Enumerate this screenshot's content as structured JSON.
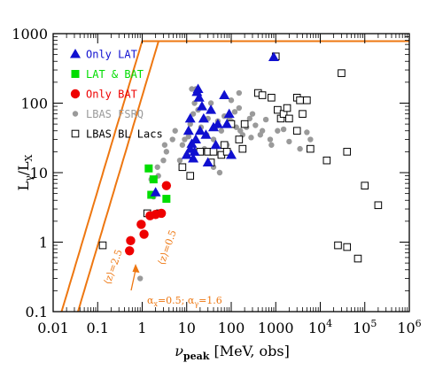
{
  "chart_data": {
    "type": "scatter",
    "title": "",
    "xlabel": "ν_peak [MeV, obs]",
    "ylabel": "L_γ/L_X",
    "x_scale": "log",
    "y_scale": "log",
    "xlim": [
      0.01,
      1000000
    ],
    "ylim": [
      0.1,
      1000
    ],
    "grid": false,
    "legend_position": "top-left",
    "x_ticks": [
      {
        "v": 0.01,
        "label": "0.01"
      },
      {
        "v": 0.1,
        "label": "0.1"
      },
      {
        "v": 1,
        "label": "1"
      },
      {
        "v": 10,
        "label": "10"
      },
      {
        "v": 100,
        "label": "100"
      },
      {
        "v": 1000,
        "label": "1000"
      },
      {
        "v": 10000,
        "base": "10",
        "exp": "4"
      },
      {
        "v": 100000,
        "base": "10",
        "exp": "5"
      },
      {
        "v": 1000000,
        "base": "10",
        "exp": "6"
      }
    ],
    "y_ticks": [
      {
        "v": 0.1,
        "label": "0.1"
      },
      {
        "v": 1,
        "label": "1"
      },
      {
        "v": 10,
        "label": "10"
      },
      {
        "v": 100,
        "label": "100"
      },
      {
        "v": 1000,
        "label": "1000"
      }
    ],
    "series": [
      {
        "name": "LBAS FSRQ",
        "marker": "circle-small",
        "color": "#9a9a9a",
        "points": [
          [
            0.9,
            0.3
          ],
          [
            1.8,
            4.5
          ],
          [
            1.6,
            8
          ],
          [
            2.3,
            9
          ],
          [
            2.2,
            12
          ],
          [
            3,
            15
          ],
          [
            3.5,
            20
          ],
          [
            4.8,
            30
          ],
          [
            5.5,
            40
          ],
          [
            3.2,
            25
          ],
          [
            7,
            15
          ],
          [
            8,
            25
          ],
          [
            9,
            30
          ],
          [
            10,
            18
          ],
          [
            11,
            33
          ],
          [
            12,
            50
          ],
          [
            14,
            70
          ],
          [
            13,
            160
          ],
          [
            15,
            100
          ],
          [
            16,
            160
          ],
          [
            18,
            80
          ],
          [
            21,
            45
          ],
          [
            25,
            22
          ],
          [
            28,
            35
          ],
          [
            30,
            60
          ],
          [
            35,
            100
          ],
          [
            40,
            30
          ],
          [
            45,
            45
          ],
          [
            50,
            55
          ],
          [
            60,
            40
          ],
          [
            70,
            65
          ],
          [
            80,
            25
          ],
          [
            90,
            60
          ],
          [
            100,
            55
          ],
          [
            120,
            75
          ],
          [
            130,
            45
          ],
          [
            150,
            85
          ],
          [
            160,
            40
          ],
          [
            180,
            35
          ],
          [
            200,
            50
          ],
          [
            220,
            45
          ],
          [
            260,
            60
          ],
          [
            280,
            32
          ],
          [
            300,
            70
          ],
          [
            350,
            48
          ],
          [
            450,
            35
          ],
          [
            500,
            40
          ],
          [
            600,
            58
          ],
          [
            750,
            30
          ],
          [
            800,
            25
          ],
          [
            1100,
            40
          ],
          [
            1500,
            42
          ],
          [
            2000,
            28
          ],
          [
            3500,
            22
          ],
          [
            5000,
            38
          ],
          [
            6000,
            30
          ],
          [
            40,
            12
          ],
          [
            55,
            10
          ],
          [
            100,
            110
          ],
          [
            150,
            140
          ]
        ]
      },
      {
        "name": "Only LAT",
        "marker": "triangle",
        "color": "#1010d0",
        "points": [
          [
            2,
            5.2
          ],
          [
            10,
            18
          ],
          [
            12,
            22
          ],
          [
            11,
            40
          ],
          [
            12,
            60
          ],
          [
            13,
            26
          ],
          [
            14,
            16
          ],
          [
            15,
            20
          ],
          [
            16,
            30
          ],
          [
            17,
            145
          ],
          [
            18,
            160
          ],
          [
            19,
            120
          ],
          [
            20,
            40
          ],
          [
            22,
            90
          ],
          [
            24,
            60
          ],
          [
            27,
            35
          ],
          [
            30,
            14
          ],
          [
            35,
            80
          ],
          [
            40,
            45
          ],
          [
            45,
            25
          ],
          [
            50,
            50
          ],
          [
            70,
            130
          ],
          [
            80,
            50
          ],
          [
            100,
            18
          ],
          [
            90,
            70
          ],
          [
            900,
            460
          ]
        ]
      },
      {
        "name": "LAT & BAT",
        "marker": "square-filled",
        "color": "#00dd00",
        "points": [
          [
            1.4,
            11.5
          ],
          [
            1.6,
            4.8
          ],
          [
            1.8,
            8
          ],
          [
            3.5,
            4.2
          ]
        ]
      },
      {
        "name": "Only BAT",
        "marker": "circle-large",
        "color": "#ee0000",
        "points": [
          [
            0.52,
            0.75
          ],
          [
            0.55,
            1.05
          ],
          [
            0.95,
            1.8
          ],
          [
            1.1,
            1.3
          ],
          [
            1.5,
            2.4
          ],
          [
            2,
            2.5
          ],
          [
            2.7,
            2.6
          ],
          [
            3.5,
            6.5
          ]
        ]
      },
      {
        "name": "LBAS BL Lacs",
        "marker": "square-open",
        "color": "#000000",
        "points": [
          [
            0.13,
            0.9
          ],
          [
            1.3,
            2.6
          ],
          [
            2.5,
            2.6
          ],
          [
            8,
            12
          ],
          [
            12,
            9
          ],
          [
            20,
            20
          ],
          [
            30,
            20
          ],
          [
            35,
            14
          ],
          [
            40,
            20
          ],
          [
            60,
            18
          ],
          [
            70,
            25
          ],
          [
            80,
            20
          ],
          [
            100,
            50
          ],
          [
            150,
            30
          ],
          [
            180,
            22
          ],
          [
            200,
            50
          ],
          [
            400,
            140
          ],
          [
            500,
            130
          ],
          [
            800,
            120
          ],
          [
            1000,
            470
          ],
          [
            1100,
            80
          ],
          [
            1300,
            60
          ],
          [
            1500,
            70
          ],
          [
            1800,
            85
          ],
          [
            2000,
            60
          ],
          [
            3000,
            120
          ],
          [
            3500,
            110
          ],
          [
            3000,
            40
          ],
          [
            4000,
            70
          ],
          [
            5000,
            110
          ],
          [
            6000,
            22
          ],
          [
            14000,
            15
          ],
          [
            30000,
            270
          ],
          [
            40000,
            20
          ],
          [
            100000,
            6.5
          ],
          [
            200000,
            3.4
          ],
          [
            25000,
            0.9
          ],
          [
            40000,
            0.85
          ],
          [
            70000,
            0.58
          ]
        ]
      }
    ],
    "curves": [
      {
        "name": "⟨z⟩=2.5",
        "color": "#ee7711",
        "x_shift": 1
      },
      {
        "name": "⟨z⟩=0.5",
        "color": "#ee7711",
        "x_shift": 2.33
      }
    ],
    "legend": [
      {
        "label": "Only LAT",
        "color": "#1010d0",
        "marker": "triangle"
      },
      {
        "label": "LAT & BAT",
        "color": "#00dd00",
        "marker": "square-filled"
      },
      {
        "label": "Only BAT",
        "color": "#ee0000",
        "marker": "circle-large"
      },
      {
        "label": "LBAS FSRQ",
        "color": "#9a9a9a",
        "marker": "circle-small"
      },
      {
        "label": "LBAS BL Lacs",
        "color": "#000000",
        "marker": "square-open"
      }
    ],
    "annotations": {
      "alpha_text": "α_x=0.5; α_γ=1.6",
      "alpha_color": "#ee7711",
      "curve_label_1": "⟨z⟩=2.5",
      "curve_label_2": "⟨z⟩=0.5"
    }
  }
}
